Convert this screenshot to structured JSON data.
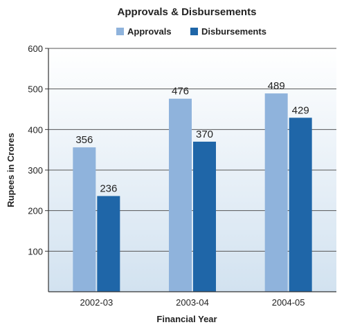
{
  "chart_data": {
    "type": "bar",
    "title": "Approvals & Disbursements",
    "xlabel": "Financial Year",
    "ylabel": "Rupees in Crores",
    "categories": [
      "2002-03",
      "2003-04",
      "2004-05"
    ],
    "ylim": [
      0,
      600
    ],
    "yticks": [
      100,
      200,
      300,
      400,
      500,
      600
    ],
    "grid": true,
    "legend_position": "top",
    "series": [
      {
        "name": "Approvals",
        "values": [
          356,
          476,
          489
        ],
        "color": "#8fb3dc",
        "label_color": "#222222"
      },
      {
        "name": "Disbursements",
        "values": [
          236,
          370,
          429
        ],
        "color": "#1f66a8",
        "label_color": "#222222"
      }
    ],
    "plot_background_top": "#ffffff",
    "plot_background_bottom": "#d2e2f0"
  }
}
